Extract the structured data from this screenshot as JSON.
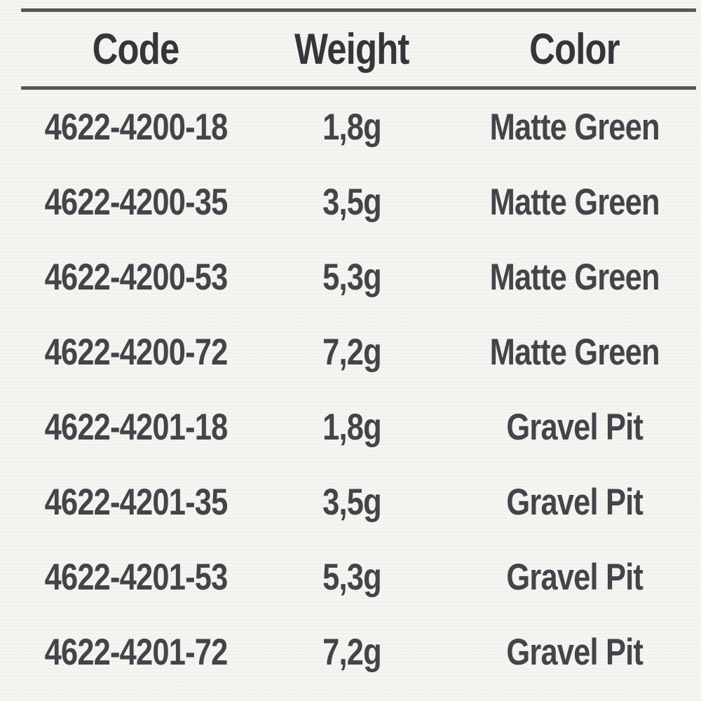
{
  "table": {
    "headers": {
      "code": "Code",
      "weight": "Weight",
      "color": "Color"
    },
    "rows": [
      {
        "code": "4622-4200-18",
        "weight": "1,8g",
        "color": "Matte Green"
      },
      {
        "code": "4622-4200-35",
        "weight": "3,5g",
        "color": "Matte Green"
      },
      {
        "code": "4622-4200-53",
        "weight": "5,3g",
        "color": "Matte Green"
      },
      {
        "code": "4622-4200-72",
        "weight": "7,2g",
        "color": "Matte Green"
      },
      {
        "code": "4622-4201-18",
        "weight": "1,8g",
        "color": "Gravel Pit"
      },
      {
        "code": "4622-4201-35",
        "weight": "3,5g",
        "color": "Gravel Pit"
      },
      {
        "code": "4622-4201-53",
        "weight": "5,3g",
        "color": "Gravel Pit"
      },
      {
        "code": "4622-4201-72",
        "weight": "7,2g",
        "color": "Gravel Pit"
      }
    ]
  },
  "colors": {
    "background": "#f5f4f1",
    "rule": "#4a4b4c",
    "header_text": "#27272c",
    "body_text": "#36373d"
  }
}
